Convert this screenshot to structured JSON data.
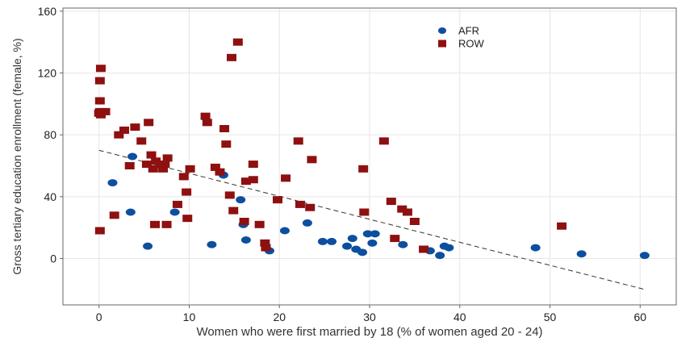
{
  "chart_data": {
    "type": "scatter",
    "title": "",
    "xlabel": "Women who were first married by 18 (% of women aged 20 - 24)",
    "ylabel": "Gross tertiary education enrollment (female, %)",
    "xlim": [
      -4,
      64
    ],
    "ylim": [
      -30,
      162
    ],
    "xticks": [
      0,
      10,
      20,
      30,
      40,
      50,
      60
    ],
    "yticks": [
      0,
      40,
      80,
      120,
      160
    ],
    "grid": true,
    "legend_position": "top-center",
    "trendline": {
      "style": "dashed",
      "color": "#333333",
      "points": [
        [
          0,
          70
        ],
        [
          60.5,
          -20
        ]
      ]
    },
    "series": [
      {
        "name": "AFR",
        "marker": "circle",
        "color": "#0d4f9e",
        "points": [
          [
            1.5,
            49
          ],
          [
            3.5,
            30
          ],
          [
            3.7,
            66
          ],
          [
            5.4,
            8
          ],
          [
            8.4,
            30
          ],
          [
            12.5,
            9
          ],
          [
            13.8,
            54
          ],
          [
            15.7,
            38
          ],
          [
            16,
            22
          ],
          [
            16.3,
            12
          ],
          [
            18.9,
            5
          ],
          [
            20.6,
            18
          ],
          [
            23.1,
            23
          ],
          [
            24.8,
            11
          ],
          [
            25.8,
            11
          ],
          [
            27.5,
            8
          ],
          [
            28.1,
            13
          ],
          [
            28.5,
            6
          ],
          [
            29.2,
            4
          ],
          [
            29.8,
            16
          ],
          [
            30.3,
            10
          ],
          [
            30.6,
            16
          ],
          [
            33.7,
            9
          ],
          [
            36.7,
            5
          ],
          [
            37.8,
            2
          ],
          [
            38.3,
            8
          ],
          [
            38.8,
            7
          ],
          [
            48.4,
            7
          ],
          [
            53.5,
            3
          ],
          [
            60.5,
            2
          ]
        ]
      },
      {
        "name": "ROW",
        "marker": "square",
        "color": "#8e1010",
        "points": [
          [
            0,
            94
          ],
          [
            0.1,
            95
          ],
          [
            0.1,
            115
          ],
          [
            0.2,
            123
          ],
          [
            0.1,
            102
          ],
          [
            0.2,
            93
          ],
          [
            0.1,
            18
          ],
          [
            0.7,
            95
          ],
          [
            1.7,
            28
          ],
          [
            2.2,
            80
          ],
          [
            2.8,
            83
          ],
          [
            3.4,
            60
          ],
          [
            4,
            85
          ],
          [
            4.7,
            76
          ],
          [
            5.3,
            61
          ],
          [
            5.5,
            88
          ],
          [
            5.8,
            67
          ],
          [
            6,
            58
          ],
          [
            6.2,
            22
          ],
          [
            6.3,
            63
          ],
          [
            6.8,
            61
          ],
          [
            7.1,
            58
          ],
          [
            7.3,
            61
          ],
          [
            7.5,
            22
          ],
          [
            7.6,
            65
          ],
          [
            8.7,
            35
          ],
          [
            9.4,
            53
          ],
          [
            9.7,
            43
          ],
          [
            9.8,
            26
          ],
          [
            10.1,
            58
          ],
          [
            11.8,
            92
          ],
          [
            12,
            88
          ],
          [
            12.9,
            59
          ],
          [
            13.4,
            56
          ],
          [
            13.9,
            84
          ],
          [
            14.1,
            74
          ],
          [
            14.5,
            41
          ],
          [
            14.7,
            130
          ],
          [
            14.9,
            31
          ],
          [
            15.4,
            140
          ],
          [
            16.1,
            24
          ],
          [
            16.3,
            50
          ],
          [
            17.1,
            61
          ],
          [
            17.1,
            51
          ],
          [
            17.8,
            22
          ],
          [
            18.4,
            10
          ],
          [
            18.5,
            7
          ],
          [
            19.8,
            38
          ],
          [
            20.7,
            52
          ],
          [
            22.1,
            76
          ],
          [
            22.3,
            35
          ],
          [
            23.4,
            33
          ],
          [
            23.6,
            64
          ],
          [
            29.3,
            58
          ],
          [
            29.4,
            30
          ],
          [
            31.6,
            76
          ],
          [
            32.4,
            37
          ],
          [
            32.8,
            13
          ],
          [
            33.6,
            32
          ],
          [
            34.2,
            30
          ],
          [
            35,
            24
          ],
          [
            36,
            6
          ],
          [
            51.3,
            21
          ]
        ]
      }
    ]
  }
}
